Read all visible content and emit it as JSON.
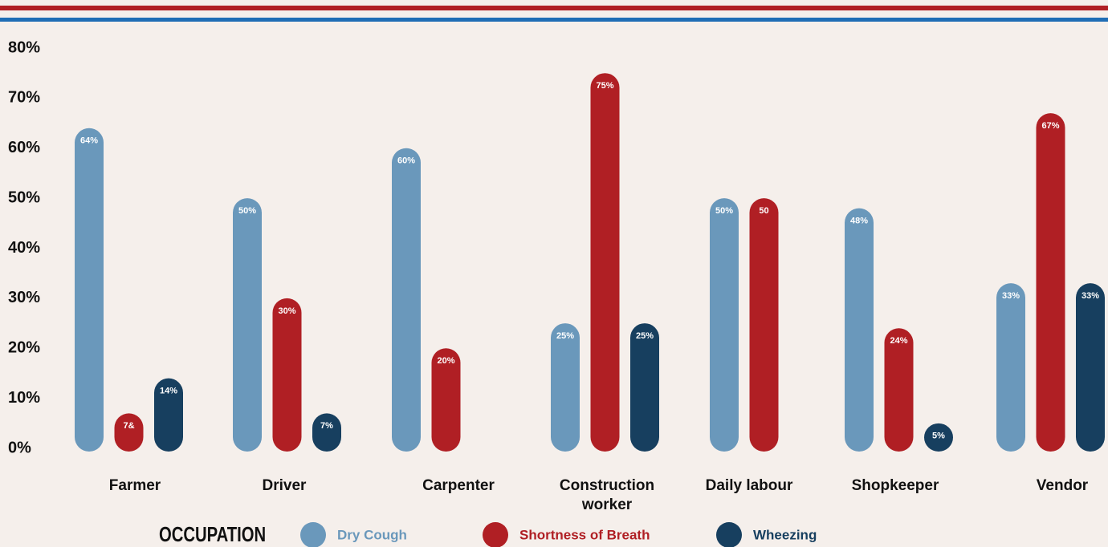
{
  "chart_data": {
    "type": "bar",
    "x_label": "OCCUPATION",
    "categories": [
      "Farmer",
      "Driver",
      "Carpenter",
      "Construction worker",
      "Daily labour",
      "Shopkeeper",
      "Vendor"
    ],
    "series": [
      {
        "name": "Dry Cough",
        "color": "#6a98bb",
        "values": [
          64,
          50,
          60,
          25,
          50,
          48,
          33
        ],
        "value_labels": [
          "64%",
          "50%",
          "60%",
          "25%",
          "50%",
          "48%",
          "33%"
        ]
      },
      {
        "name": "Shortness of Breath",
        "color": "#b01f24",
        "values": [
          7,
          30,
          20,
          75,
          50,
          24,
          67
        ],
        "value_labels": [
          "7&",
          "30%",
          "20%",
          "75%",
          "50",
          "24%",
          "67%"
        ]
      },
      {
        "name": "Wheezing",
        "color": "#173f5f",
        "values": [
          14,
          7,
          null,
          25,
          null,
          5,
          33
        ],
        "value_labels": [
          "14%",
          "7%",
          null,
          "25%",
          null,
          "5%",
          "33%"
        ]
      }
    ],
    "ylim": [
      0,
      80
    ],
    "yticks": [
      {
        "value": 0,
        "label": "0%"
      },
      {
        "value": 10,
        "label": "10%"
      },
      {
        "value": 20,
        "label": "20%"
      },
      {
        "value": 30,
        "label": "30%"
      },
      {
        "value": 40,
        "label": "40%"
      },
      {
        "value": 50,
        "label": "50%"
      },
      {
        "value": 60,
        "label": "60%"
      },
      {
        "value": 70,
        "label": "70%"
      },
      {
        "value": 80,
        "label": "80%"
      }
    ],
    "grid": false
  }
}
